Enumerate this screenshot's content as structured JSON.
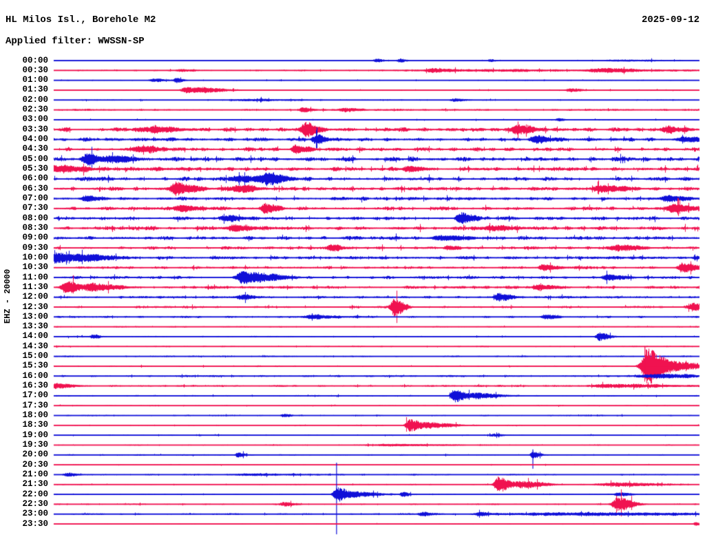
{
  "header": {
    "station_title": "HL Milos Isl., Borehole M2",
    "date": "2025-09-12",
    "filter_line": "Applied filter: WWSSN-SP"
  },
  "axis": {
    "channel_scale_label": "EHZ - 20000",
    "row_interval_minutes": 30
  },
  "colors": {
    "blue": "#1010d8",
    "red": "#f01250",
    "background": "#ffffff",
    "text": "#000000"
  },
  "chart_data": {
    "type": "line",
    "subtype": "helicorder-seismogram",
    "title": "HL Milos Isl., Borehole M2",
    "date": "2025-09-12",
    "filter": "WWSSN-SP",
    "channel": "EHZ",
    "scale": 20000,
    "rows_note": "48 half-hour traces; noise = ambient amplitude in px; events = [x_fraction, amplitude_px, width_fraction]; spikes = [x_fraction, up_px, down_px]",
    "rows": [
      {
        "t": "00:00",
        "c": "blue",
        "noise": 0.8,
        "events": [
          [
            0.5,
            2.5,
            0.006
          ],
          [
            0.535,
            3,
            0.005
          ],
          [
            0.675,
            2,
            0.004
          ],
          [
            0.88,
            1.2,
            0.04
          ]
        ],
        "spikes": []
      },
      {
        "t": "00:30",
        "c": "red",
        "noise": 1.4,
        "events": [
          [
            0.195,
            2,
            0.008
          ],
          [
            0.585,
            2.5,
            0.01
          ],
          [
            0.85,
            2.2,
            0.025
          ],
          [
            0.65,
            1.2,
            0.12
          ]
        ],
        "spikes": []
      },
      {
        "t": "01:00",
        "c": "blue",
        "noise": 0.9,
        "events": [
          [
            0.155,
            2.5,
            0.007
          ],
          [
            0.19,
            3.5,
            0.005
          ]
        ],
        "spikes": []
      },
      {
        "t": "01:30",
        "c": "red",
        "noise": 1.1,
        "events": [
          [
            0.205,
            4,
            0.01
          ],
          [
            0.235,
            3,
            0.015
          ],
          [
            0.8,
            2.5,
            0.01
          ]
        ],
        "spikes": []
      },
      {
        "t": "02:00",
        "c": "blue",
        "noise": 1.1,
        "events": [
          [
            0.3,
            1.5,
            0.03
          ],
          [
            0.62,
            2.5,
            0.008
          ]
        ],
        "spikes": []
      },
      {
        "t": "02:30",
        "c": "red",
        "noise": 1.7,
        "events": [
          [
            0.385,
            3.5,
            0.007
          ],
          [
            0.45,
            2.5,
            0.009
          ]
        ],
        "spikes": []
      },
      {
        "t": "03:00",
        "c": "blue",
        "noise": 1.1,
        "events": [
          [
            0.78,
            2,
            0.005
          ]
        ],
        "spikes": []
      },
      {
        "t": "03:30",
        "c": "red",
        "noise": 3.6,
        "events": [
          [
            0.39,
            9,
            0.009
          ],
          [
            0.716,
            7,
            0.01
          ],
          [
            0.948,
            5,
            0.01
          ],
          [
            0.15,
            4,
            0.018
          ]
        ],
        "spikes": []
      },
      {
        "t": "04:00",
        "c": "blue",
        "noise": 3.6,
        "events": [
          [
            0.405,
            6,
            0.007
          ],
          [
            0.748,
            4.5,
            0.009
          ],
          [
            0.975,
            4,
            0.009
          ]
        ],
        "spikes": []
      },
      {
        "t": "04:30",
        "c": "red",
        "noise": 3.6,
        "events": [
          [
            0.375,
            5,
            0.009
          ],
          [
            0.13,
            4.5,
            0.013
          ]
        ],
        "spikes": []
      },
      {
        "t": "05:00",
        "c": "blue",
        "noise": 4.0,
        "events": [
          [
            0.053,
            7,
            0.009
          ],
          [
            0.09,
            5,
            0.013
          ]
        ],
        "spikes": []
      },
      {
        "t": "05:30",
        "c": "red",
        "noise": 3.6,
        "events": [
          [
            0.0,
            5,
            0.018
          ],
          [
            0.55,
            4,
            0.011
          ]
        ],
        "spikes": []
      },
      {
        "t": "06:00",
        "c": "blue",
        "noise": 3.6,
        "events": [
          [
            0.333,
            7,
            0.011
          ],
          [
            0.29,
            4,
            0.018
          ]
        ],
        "spikes": []
      },
      {
        "t": "06:30",
        "c": "red",
        "noise": 3.6,
        "events": [
          [
            0.19,
            8,
            0.013
          ],
          [
            0.285,
            5,
            0.013
          ],
          [
            0.85,
            4,
            0.018
          ]
        ],
        "spikes": []
      },
      {
        "t": "07:00",
        "c": "blue",
        "noise": 3.2,
        "events": [
          [
            0.05,
            4,
            0.009
          ],
          [
            0.95,
            4,
            0.013
          ]
        ],
        "spikes": []
      },
      {
        "t": "07:30",
        "c": "red",
        "noise": 3.2,
        "events": [
          [
            0.327,
            6,
            0.009
          ],
          [
            0.96,
            5,
            0.013
          ],
          [
            0.2,
            4,
            0.013
          ]
        ],
        "spikes": []
      },
      {
        "t": "08:00",
        "c": "blue",
        "noise": 3.2,
        "events": [
          [
            0.631,
            7,
            0.009
          ],
          [
            0.27,
            4,
            0.011
          ]
        ],
        "spikes": []
      },
      {
        "t": "08:30",
        "c": "red",
        "noise": 3.4,
        "events": [
          [
            0.28,
            4,
            0.013
          ],
          [
            0.68,
            4,
            0.013
          ]
        ],
        "spikes": []
      },
      {
        "t": "09:00",
        "c": "blue",
        "noise": 3.2,
        "events": [
          [
            0.6,
            3.5,
            0.018
          ]
        ],
        "spikes": []
      },
      {
        "t": "09:30",
        "c": "red",
        "noise": 2.7,
        "events": [
          [
            0.43,
            4.5,
            0.007
          ],
          [
            0.61,
            3.5,
            0.007
          ],
          [
            0.87,
            3.5,
            0.018
          ]
        ],
        "spikes": []
      },
      {
        "t": "10:00",
        "c": "blue",
        "noise": 3.1,
        "events": [
          [
            0.004,
            8,
            0.009
          ],
          [
            0.045,
            5,
            0.018
          ]
        ],
        "spikes": []
      },
      {
        "t": "10:30",
        "c": "red",
        "noise": 2.7,
        "events": [
          [
            0.975,
            6.5,
            0.01
          ],
          [
            0.76,
            3.5,
            0.01
          ]
        ],
        "spikes": []
      },
      {
        "t": "11:00",
        "c": "blue",
        "noise": 2.7,
        "events": [
          [
            0.29,
            8,
            0.01
          ],
          [
            0.32,
            5,
            0.018
          ],
          [
            0.86,
            3.5,
            0.013
          ]
        ],
        "spikes": []
      },
      {
        "t": "11:30",
        "c": "red",
        "noise": 2.7,
        "events": [
          [
            0.018,
            9,
            0.009
          ],
          [
            0.06,
            5,
            0.018
          ],
          [
            0.75,
            3.5,
            0.01
          ]
        ],
        "spikes": []
      },
      {
        "t": "12:00",
        "c": "blue",
        "noise": 2.2,
        "events": [
          [
            0.69,
            5.5,
            0.009
          ],
          [
            0.29,
            3,
            0.009
          ]
        ],
        "spikes": []
      },
      {
        "t": "12:30",
        "c": "red",
        "noise": 2.2,
        "events": [
          [
            0.527,
            13,
            0.007
          ],
          [
            0.99,
            6,
            0.01
          ]
        ],
        "spikes": []
      },
      {
        "t": "13:00",
        "c": "blue",
        "noise": 2.0,
        "events": [
          [
            0.76,
            3.5,
            0.007
          ],
          [
            0.4,
            2.5,
            0.018
          ]
        ],
        "spikes": []
      },
      {
        "t": "13:30",
        "c": "red",
        "noise": 1.3,
        "events": [],
        "spikes": []
      },
      {
        "t": "14:00",
        "c": "blue",
        "noise": 1.3,
        "events": [
          [
            0.06,
            3,
            0.005
          ],
          [
            0.845,
            6,
            0.007
          ]
        ],
        "spikes": []
      },
      {
        "t": "14:30",
        "c": "red",
        "noise": 1.2,
        "events": [],
        "spikes": []
      },
      {
        "t": "15:00",
        "c": "blue",
        "noise": 1.2,
        "events": [],
        "spikes": []
      },
      {
        "t": "15:30",
        "c": "red",
        "noise": 1.3,
        "events": [
          [
            0.918,
            26,
            0.01
          ],
          [
            0.955,
            6,
            0.025
          ]
        ],
        "spikes": [
          [
            0.9155,
            28,
            20
          ]
        ]
      },
      {
        "t": "16:00",
        "c": "blue",
        "noise": 1.7,
        "events": [
          [
            0.93,
            3,
            0.03
          ]
        ],
        "spikes": []
      },
      {
        "t": "16:30",
        "c": "red",
        "noise": 1.7,
        "events": [
          [
            0.0,
            4,
            0.013
          ],
          [
            0.87,
            2.5,
            0.04
          ]
        ],
        "spikes": []
      },
      {
        "t": "17:00",
        "c": "blue",
        "noise": 1.3,
        "events": [
          [
            0.62,
            10,
            0.007
          ],
          [
            0.655,
            4,
            0.016
          ]
        ],
        "spikes": []
      },
      {
        "t": "17:30",
        "c": "red",
        "noise": 1.1,
        "events": [],
        "spikes": []
      },
      {
        "t": "18:00",
        "c": "blue",
        "noise": 1.1,
        "events": [
          [
            0.355,
            2.5,
            0.005
          ]
        ],
        "spikes": []
      },
      {
        "t": "18:30",
        "c": "red",
        "noise": 1.1,
        "events": [
          [
            0.551,
            9,
            0.008
          ],
          [
            0.585,
            4,
            0.016
          ]
        ],
        "spikes": []
      },
      {
        "t": "19:00",
        "c": "blue",
        "noise": 1.1,
        "events": [
          [
            0.68,
            2,
            0.008
          ]
        ],
        "spikes": []
      },
      {
        "t": "19:30",
        "c": "red",
        "noise": 0.9,
        "events": [
          [
            0.52,
            1.5,
            0.04
          ]
        ],
        "spikes": []
      },
      {
        "t": "20:00",
        "c": "blue",
        "noise": 1.2,
        "events": [
          [
            0.285,
            3.5,
            0.005
          ],
          [
            0.742,
            5,
            0.005
          ]
        ],
        "spikes": [
          [
            0.742,
            8,
            20
          ]
        ]
      },
      {
        "t": "20:30",
        "c": "red",
        "noise": 0.9,
        "events": [],
        "spikes": []
      },
      {
        "t": "21:00",
        "c": "blue",
        "noise": 1.2,
        "events": [
          [
            0.02,
            2.5,
            0.008
          ],
          [
            0.3,
            1.2,
            0.04
          ]
        ],
        "spikes": []
      },
      {
        "t": "21:30",
        "c": "red",
        "noise": 1.1,
        "events": [
          [
            0.688,
            12,
            0.007
          ],
          [
            0.725,
            5,
            0.016
          ],
          [
            0.87,
            3,
            0.03
          ]
        ],
        "spikes": []
      },
      {
        "t": "22:00",
        "c": "blue",
        "noise": 1.1,
        "events": [
          [
            0.438,
            11,
            0.007
          ],
          [
            0.47,
            4,
            0.016
          ],
          [
            0.54,
            3.5,
            0.005
          ],
          [
            0.875,
            3,
            0.008
          ]
        ],
        "spikes": [
          [
            0.438,
            46,
            58
          ]
        ]
      },
      {
        "t": "22:30",
        "c": "red",
        "noise": 1.2,
        "events": [
          [
            0.355,
            3,
            0.007
          ],
          [
            0.873,
            10,
            0.01
          ]
        ],
        "spikes": []
      },
      {
        "t": "23:00",
        "c": "blue",
        "noise": 1.5,
        "events": [
          [
            0.57,
            3,
            0.008
          ],
          [
            0.66,
            2.5,
            0.007
          ],
          [
            0.8,
            2,
            0.13
          ]
        ],
        "spikes": []
      },
      {
        "t": "23:30",
        "c": "red",
        "noise": 0.9,
        "events": [
          [
            0.993,
            2.5,
            0.004
          ]
        ],
        "spikes": []
      }
    ]
  }
}
